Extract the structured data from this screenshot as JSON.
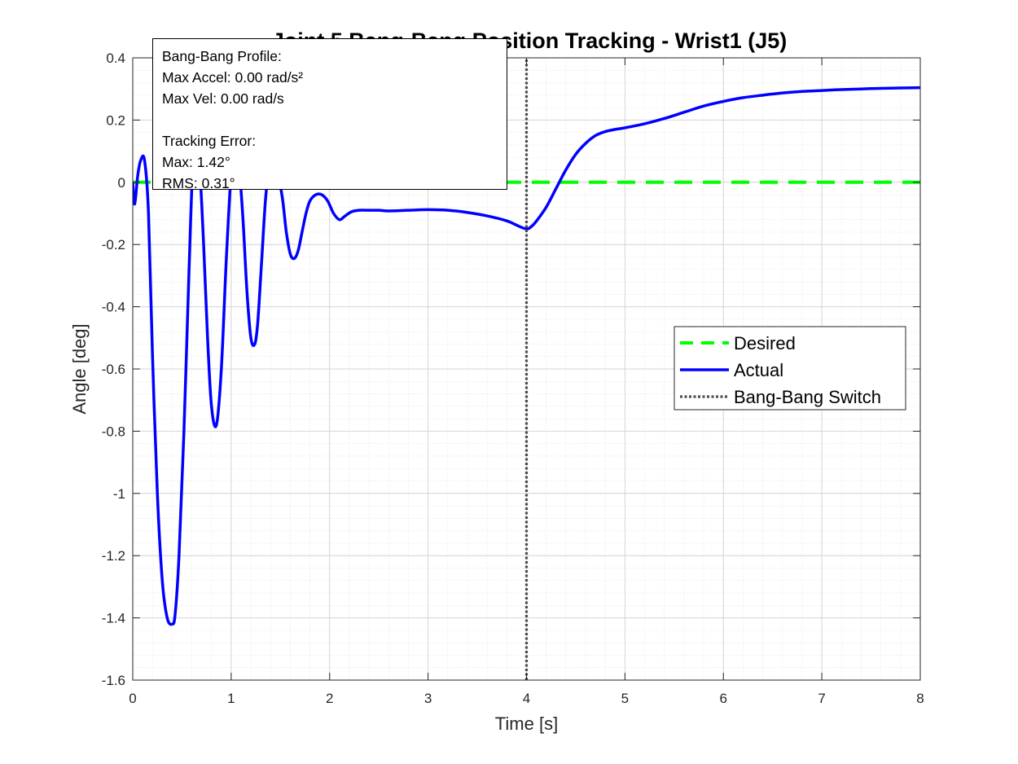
{
  "chart_data": {
    "type": "line",
    "title": "Joint 5 Bang-Bang Position Tracking - Wrist1 (J5)",
    "xlabel": "Time [s]",
    "ylabel": "Angle [deg]",
    "xlim": [
      0,
      8
    ],
    "ylim": [
      -1.6,
      0.4
    ],
    "xticks": [
      0,
      1,
      2,
      3,
      4,
      5,
      6,
      7,
      8
    ],
    "xtick_labels": [
      "0",
      "1",
      "2",
      "3",
      "4",
      "5",
      "6",
      "7",
      "8"
    ],
    "yticks": [
      0.4,
      0.2,
      0,
      -0.2,
      -0.4,
      -0.6,
      -0.8,
      -1,
      -1.2,
      -1.4,
      -1.6
    ],
    "ytick_labels": [
      "0.4",
      "0.2",
      "0",
      "-0.2",
      "-0.4",
      "-0.6",
      "-0.8",
      "-1",
      "-1.2",
      "-1.4",
      "-1.6"
    ],
    "grid": true,
    "minor_grid": true,
    "legend_position": "right",
    "series": [
      {
        "name": "Desired",
        "color": "#00ff00",
        "style": "dashed",
        "x": [
          0,
          8
        ],
        "y": [
          0,
          0
        ]
      },
      {
        "name": "Actual",
        "color": "#0000ff",
        "style": "solid",
        "x": [
          0,
          0.02,
          0.05,
          0.08,
          0.12,
          0.16,
          0.2,
          0.25,
          0.3,
          0.35,
          0.4,
          0.43,
          0.47,
          0.52,
          0.57,
          0.61,
          0.65,
          0.68,
          0.72,
          0.76,
          0.8,
          0.85,
          0.9,
          0.95,
          1.0,
          1.04,
          1.08,
          1.12,
          1.16,
          1.2,
          1.24,
          1.27,
          1.31,
          1.35,
          1.39,
          1.43,
          1.47,
          1.52,
          1.56,
          1.6,
          1.64,
          1.68,
          1.72,
          1.76,
          1.8,
          1.86,
          1.92,
          1.98,
          2.04,
          2.1,
          2.15,
          2.22,
          2.3,
          2.4,
          2.5,
          2.6,
          2.8,
          3.0,
          3.2,
          3.4,
          3.6,
          3.8,
          3.9,
          4.0,
          4.05,
          4.1,
          4.2,
          4.3,
          4.4,
          4.5,
          4.6,
          4.7,
          4.8,
          4.9,
          5.0,
          5.2,
          5.4,
          5.6,
          5.8,
          6.0,
          6.2,
          6.4,
          6.6,
          6.8,
          7.0,
          7.2,
          7.4,
          7.6,
          7.8,
          8.0
        ],
        "y": [
          0,
          -0.07,
          0.02,
          0.07,
          0.07,
          -0.1,
          -0.55,
          -1.0,
          -1.28,
          -1.4,
          -1.42,
          -1.39,
          -1.2,
          -0.8,
          -0.3,
          0.05,
          0.12,
          0.05,
          -0.2,
          -0.5,
          -0.72,
          -0.78,
          -0.6,
          -0.25,
          0.03,
          0.1,
          0.05,
          -0.12,
          -0.35,
          -0.5,
          -0.52,
          -0.45,
          -0.25,
          -0.05,
          0.05,
          0.07,
          0.03,
          -0.05,
          -0.16,
          -0.23,
          -0.245,
          -0.22,
          -0.16,
          -0.1,
          -0.06,
          -0.04,
          -0.04,
          -0.06,
          -0.1,
          -0.12,
          -0.11,
          -0.095,
          -0.09,
          -0.09,
          -0.09,
          -0.092,
          -0.09,
          -0.088,
          -0.09,
          -0.097,
          -0.108,
          -0.124,
          -0.138,
          -0.15,
          -0.142,
          -0.125,
          -0.08,
          -0.02,
          0.04,
          0.09,
          0.125,
          0.15,
          0.163,
          0.17,
          0.175,
          0.188,
          0.205,
          0.225,
          0.245,
          0.26,
          0.272,
          0.28,
          0.287,
          0.292,
          0.295,
          0.298,
          0.3,
          0.302,
          0.303,
          0.304
        ]
      },
      {
        "name": "Bang-Bang Switch",
        "color": "#4d4d4d",
        "style": "dotted",
        "x": [
          4,
          4
        ],
        "y": [
          -1.6,
          0.4
        ]
      }
    ],
    "annotation": {
      "lines": [
        "Bang-Bang Profile:",
        "Max Accel: 0.00 rad/s²",
        "Max Vel: 0.00 rad/s",
        "",
        "Tracking Error:",
        "Max: 1.42°",
        "RMS: 0.31°"
      ]
    }
  }
}
